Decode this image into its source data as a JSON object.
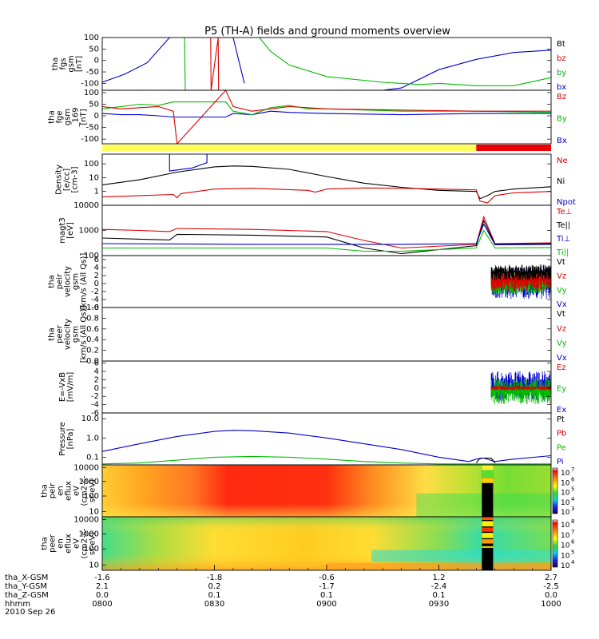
{
  "chart_data": {
    "type": "line",
    "title": "P5 (TH-A) fields and ground moments overview",
    "time_axis": {
      "tick_times": [
        "0800",
        "0830",
        "0900",
        "0930",
        "1000"
      ],
      "rows": [
        {
          "label": "tha_X-GSM",
          "values": [
            "-1.6",
            "-1.8",
            "-0.6",
            "1.2",
            "2.7"
          ]
        },
        {
          "label": "tha_Y-GSM",
          "values": [
            "2.1",
            "0.2",
            "-1.7",
            "-2.4",
            "-2.5"
          ]
        },
        {
          "label": "tha_Z-GSM",
          "values": [
            "0.0",
            "0.1",
            "0.1",
            "0.1",
            "0.0"
          ]
        },
        {
          "label": "hhmm",
          "values": [
            "0800",
            "0830",
            "0900",
            "0930",
            "1000"
          ]
        }
      ],
      "date": "2010 Sep 26"
    },
    "panels": [
      {
        "id": "fgs",
        "ylabel": [
          "tha",
          "fgs",
          "gsm",
          "[nT]"
        ],
        "ylim": [
          -130,
          100
        ],
        "yticks": [
          "100",
          "50",
          "0",
          "-50",
          "-100"
        ],
        "legend": [
          {
            "text": "Bt",
            "color": "#000000"
          },
          {
            "text": "bz",
            "color": "#dd0000"
          },
          {
            "text": "by",
            "color": "#00bb00"
          },
          {
            "text": "bx",
            "color": "#0000cc"
          }
        ],
        "series": [
          {
            "name": "bx",
            "color": "#0000cc",
            "x": [
              0,
              6,
              12,
              18,
              20,
              30,
              35,
              38,
              39,
              40,
              60,
              75,
              80,
              90,
              100,
              110,
              120
            ],
            "y": [
              -95,
              -60,
              -10,
              100,
              null,
              100,
              100,
              -100,
              null,
              -130,
              -130,
              -130,
              -120,
              -40,
              5,
              35,
              45
            ]
          },
          {
            "name": "by",
            "color": "#00bb00",
            "x": [
              22,
              22.2,
              null,
              42,
              45,
              50,
              60,
              75,
              85,
              90,
              100,
              110,
              120
            ],
            "y": [
              100,
              -130,
              null,
              100,
              40,
              -20,
              -70,
              -95,
              -105,
              -100,
              -110,
              -110,
              -75
            ]
          },
          {
            "name": "bz",
            "color": "#dd0000",
            "x": [
              29,
              29.1,
              31,
              31.1
            ],
            "y": [
              100,
              -130,
              100,
              -130
            ]
          }
        ]
      },
      {
        "id": "fge",
        "ylabel": [
          "tha",
          "fge",
          "gsm",
          "_169",
          "[nT]"
        ],
        "ylim": [
          -120,
          110
        ],
        "yticks": [
          "100",
          "50",
          "0",
          "-50",
          "-100"
        ],
        "legend": [
          {
            "text": "Bz",
            "color": "#dd0000"
          },
          {
            "text": "By",
            "color": "#00bb00"
          },
          {
            "text": "Bx",
            "color": "#0000cc"
          }
        ],
        "series": [
          {
            "name": "Bx",
            "color": "#0000cc",
            "x": [
              0,
              5,
              10,
              15,
              19,
              33,
              35,
              40,
              45,
              50,
              60,
              80,
              100,
              120
            ],
            "y": [
              10,
              5,
              5,
              0,
              -5,
              -5,
              10,
              5,
              20,
              15,
              10,
              5,
              10,
              10
            ]
          },
          {
            "name": "By",
            "color": "#00bb00",
            "x": [
              0,
              5,
              10,
              15,
              19,
              33,
              35,
              40,
              45,
              50,
              55,
              60,
              80,
              100,
              120
            ],
            "y": [
              30,
              40,
              50,
              45,
              60,
              60,
              20,
              5,
              35,
              45,
              30,
              30,
              20,
              20,
              15
            ]
          },
          {
            "name": "Bz",
            "color": "#dd0000",
            "x": [
              0,
              5,
              10,
              15,
              19,
              20,
              33,
              35,
              40,
              45,
              50,
              60,
              80,
              100,
              120
            ],
            "y": [
              40,
              30,
              35,
              40,
              20,
              -120,
              110,
              40,
              20,
              30,
              40,
              30,
              25,
              20,
              20
            ]
          }
        ]
      },
      {
        "id": "flag",
        "segments": [
          {
            "x0": 0,
            "x1": 100,
            "color": "#ffff55"
          },
          {
            "x0": 100,
            "x1": 120,
            "color": "#ee0000"
          }
        ]
      },
      {
        "id": "density",
        "log": true,
        "ylabel": [
          "Density",
          "[e/cc]",
          "[cm-3]"
        ],
        "ylim": [
          0.1,
          500
        ],
        "yticks": [
          "100",
          "10",
          "1"
        ],
        "ytick_values": [
          100,
          10,
          1
        ],
        "legend": [
          {
            "text": "Ne",
            "color": "#dd0000"
          },
          {
            "text": "Ni",
            "color": "#000000"
          },
          {
            "text": "Npot",
            "color": "#0000cc"
          }
        ],
        "series": [
          {
            "name": "Ni",
            "color": "#000000",
            "x": [
              0,
              10,
              20,
              30,
              35,
              40,
              50,
              60,
              70,
              80,
              90,
              100,
              101,
              103,
              105,
              110,
              120
            ],
            "y": [
              3,
              7,
              25,
              60,
              70,
              65,
              40,
              12,
              4,
              2,
              1.2,
              1,
              0.3,
              0.5,
              1,
              1.5,
              2.2
            ]
          },
          {
            "name": "Ne",
            "color": "#dd0000",
            "x": [
              0,
              10,
              19,
              20,
              21,
              30,
              40,
              55,
              57,
              60,
              70,
              80,
              90,
              100,
              101,
              103,
              105,
              110,
              120
            ],
            "y": [
              0.4,
              0.5,
              0.6,
              0.35,
              0.7,
              1.5,
              1.7,
              1.2,
              0.9,
              1.5,
              1.8,
              1.7,
              1.5,
              1.3,
              0.2,
              0.15,
              0.5,
              0.8,
              1
            ]
          },
          {
            "name": "Npot",
            "color": "#0000cc",
            "x": [
              18,
              18,
              24,
              28,
              28
            ],
            "y": [
              500,
              30,
              50,
              120,
              500
            ]
          }
        ]
      },
      {
        "id": "temperature",
        "log": true,
        "ylabel": [
          "magt3",
          "[eV]"
        ],
        "ylim": [
          100,
          10000
        ],
        "yticks": [
          "10000",
          "1000",
          "100"
        ],
        "ytick_values": [
          10000,
          1000,
          100
        ],
        "legend": [
          {
            "text": "Te⊥",
            "color": "#dd0000"
          },
          {
            "text": "Te||",
            "color": "#000000"
          },
          {
            "text": "Ti⊥",
            "color": "#0000cc"
          },
          {
            "text": "Ti||",
            "color": "#00bb00"
          }
        ],
        "series": [
          {
            "name": "Te⊥",
            "color": "#dd0000",
            "x": [
              0,
              10,
              18,
              20,
              40,
              60,
              70,
              80,
              100,
              102,
              105,
              120
            ],
            "y": [
              1100,
              1000,
              900,
              1200,
              1100,
              900,
              400,
              200,
              280,
              3500,
              300,
              320
            ]
          },
          {
            "name": "Te||",
            "color": "#000000",
            "x": [
              0,
              10,
              18,
              20,
              40,
              60,
              70,
              80,
              100,
              102,
              105,
              120
            ],
            "y": [
              500,
              450,
              420,
              700,
              650,
              550,
              200,
              120,
              250,
              2500,
              280,
              300
            ]
          },
          {
            "name": "Ti⊥",
            "color": "#0000cc",
            "x": [
              0,
              20,
              40,
              60,
              70,
              80,
              100,
              102,
              105,
              120
            ],
            "y": [
              300,
              290,
              280,
              280,
              280,
              280,
              300,
              1800,
              270,
              280
            ]
          },
          {
            "name": "Ti||",
            "color": "#00bb00",
            "x": [
              0,
              20,
              40,
              60,
              70,
              80,
              100,
              102,
              105,
              120
            ],
            "y": [
              200,
              200,
              200,
              200,
              150,
              150,
              200,
              1000,
              200,
              210
            ]
          }
        ]
      },
      {
        "id": "ion_velocity",
        "ylabel": [
          "tha",
          "peir",
          "velocity",
          "gsm",
          "[km/s (All Qs)]"
        ],
        "ylim": [
          -6,
          7
        ],
        "yticks": [
          "6",
          "4",
          "2",
          "0",
          "-2",
          "-4",
          "-6"
        ],
        "legend": [
          {
            "text": "Vt",
            "color": "#000000"
          },
          {
            "text": "Vz",
            "color": "#dd0000"
          },
          {
            "text": "Vy",
            "color": "#00bb00"
          },
          {
            "text": "Vx",
            "color": "#0000cc"
          }
        ],
        "noise": {
          "x0": 104,
          "x1": 120,
          "bands": [
            {
              "color": "#0000cc",
              "center": 0.2,
              "amp": 4.5
            },
            {
              "color": "#00bb00",
              "center": 0.3,
              "amp": 3.5
            },
            {
              "color": "#dd0000",
              "center": 0.8,
              "amp": 3.0
            },
            {
              "color": "#000000",
              "center": 2.8,
              "amp": 2.2
            }
          ]
        }
      },
      {
        "id": "electron_velocity",
        "ylabel": [
          "tha",
          "peer",
          "velocity",
          "gsm",
          "[km/s (All Qs)]"
        ],
        "ylim": [
          0,
          1.0
        ],
        "yticks": [
          "1.0",
          "0.8",
          "0.6",
          "0.4",
          "0.2",
          "0.0"
        ],
        "legend": [
          {
            "text": "Vt",
            "color": "#000000"
          },
          {
            "text": "Vz",
            "color": "#dd0000"
          },
          {
            "text": "Vy",
            "color": "#00bb00"
          },
          {
            "text": "Vx",
            "color": "#0000cc"
          }
        ],
        "series": []
      },
      {
        "id": "efield",
        "ylabel": [
          "E=-VxB",
          "[mV/m]"
        ],
        "ylim": [
          -6,
          6.5
        ],
        "yticks": [
          "6",
          "4",
          "2",
          "0",
          "-2",
          "-4",
          "-6"
        ],
        "legend": [
          {
            "text": "Ez",
            "color": "#dd0000"
          },
          {
            "text": "Ey",
            "color": "#00bb00"
          },
          {
            "text": "Ex",
            "color": "#0000cc"
          }
        ],
        "noise": {
          "x0": 104,
          "x1": 120,
          "bands": [
            {
              "color": "#0000cc",
              "center": 0.5,
              "amp": 4.0
            },
            {
              "color": "#00bb00",
              "center": -0.8,
              "amp": 3.5
            },
            {
              "color": "#dd0000",
              "center": 0.0,
              "amp": 0.6
            }
          ]
        }
      },
      {
        "id": "pressure",
        "log": true,
        "ylabel": [
          "Pressure",
          "[nPa]"
        ],
        "ylim": [
          0.04,
          20
        ],
        "yticks": [
          "10.0",
          "1.0",
          "0.1"
        ],
        "ytick_values": [
          10,
          1,
          0.1
        ],
        "legend": [
          {
            "text": "Pt",
            "color": "#000000"
          },
          {
            "text": "Pb",
            "color": "#dd0000"
          },
          {
            "text": "Pe",
            "color": "#00bb00"
          },
          {
            "text": "Pi",
            "color": "#0000cc"
          }
        ],
        "series": [
          {
            "name": "Pi",
            "color": "#0000cc",
            "x": [
              0,
              10,
              20,
              30,
              35,
              40,
              50,
              60,
              70,
              80,
              90,
              98,
              100,
              102,
              105,
              110,
              120
            ],
            "y": [
              0.2,
              0.5,
              1.2,
              2.2,
              2.5,
              2.4,
              1.8,
              1.0,
              0.5,
              0.25,
              0.1,
              0.06,
              0.08,
              0.09,
              0.06,
              0.08,
              0.12
            ]
          },
          {
            "name": "Pe",
            "color": "#00bb00",
            "x": [
              0,
              10,
              20,
              30,
              40,
              50,
              60,
              70,
              80,
              90,
              100,
              120
            ],
            "y": [
              0.045,
              0.05,
              0.07,
              0.1,
              0.11,
              0.1,
              0.08,
              0.06,
              0.05,
              0.045,
              0.045,
              0.045
            ]
          },
          {
            "name": "Pt",
            "color": "#000000",
            "x": [
              100,
              101,
              104,
              105
            ],
            "y": [
              0.05,
              0.09,
              0.09,
              0.05
            ]
          }
        ]
      },
      {
        "id": "ion_spec",
        "type": "heatmap",
        "ylabel": [
          "tha",
          "peir",
          "en",
          "eflux",
          "eV",
          "(cm2-s-",
          "sr-eV)"
        ],
        "yticks": [
          "10000",
          "1000",
          "100",
          "10"
        ],
        "colorbar_ticks": [
          "10",
          "10",
          "10",
          "10",
          "10"
        ],
        "colorbar_exponents": [
          "7",
          "6",
          "5",
          "4",
          "3"
        ]
      },
      {
        "id": "electron_spec",
        "type": "heatmap",
        "ylabel": [
          "tha",
          "peer",
          "en",
          "eflux",
          "eV",
          "(cm2-s-",
          "sr-eV)"
        ],
        "yticks": [
          "10000",
          "1000",
          "100",
          "10"
        ],
        "colorbar_ticks": [
          "10",
          "10",
          "10",
          "10",
          "10"
        ],
        "colorbar_exponents": [
          "8",
          "7",
          "6",
          "5",
          "4"
        ]
      }
    ]
  },
  "colors": {
    "black": "#000000",
    "red": "#dd0000",
    "green": "#00bb00",
    "blue": "#0000cc"
  }
}
